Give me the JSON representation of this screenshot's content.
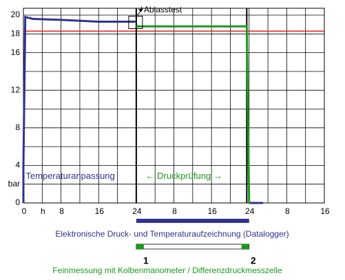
{
  "chart_data": {
    "type": "line",
    "xlim": [
      0,
      64
    ],
    "ylim": [
      0,
      20
    ],
    "xticks": [
      0,
      {
        "value": 4,
        "label": "h"
      },
      8,
      16,
      24,
      {
        "value": 32,
        "label": "8"
      },
      {
        "value": 40,
        "label": "16"
      },
      {
        "value": 48,
        "label": "24"
      },
      {
        "value": 56,
        "label": "8"
      },
      {
        "value": 64,
        "label": "16"
      }
    ],
    "yticks": [
      0,
      {
        "value": 2,
        "label": "bar"
      },
      4,
      8,
      12,
      16,
      18,
      20
    ],
    "xgrid": [
      0,
      4,
      8,
      12,
      16,
      20,
      24,
      28,
      32,
      36,
      40,
      44,
      48,
      52,
      56,
      60,
      64
    ],
    "ygrid": [
      0,
      2,
      4,
      6,
      8,
      10,
      12,
      14,
      16,
      18,
      20
    ],
    "series": [
      {
        "color": "#2e3192",
        "x": [
          0,
          0,
          0.4,
          2,
          8,
          16,
          24
        ],
        "values": [
          0,
          4,
          19.8,
          19.6,
          19.5,
          19.3,
          19.3
        ]
      },
      {
        "color": "#1a9a1a",
        "x": [
          24,
          47.5,
          48,
          48.2
        ],
        "values": [
          18.8,
          18.8,
          0,
          0
        ]
      },
      {
        "color": "#2e3192",
        "x": [
          48.2,
          51
        ],
        "values": [
          0,
          0
        ]
      }
    ],
    "hlines": [
      {
        "value": 18.3,
        "color": "#e02020"
      }
    ],
    "vlines": [
      24,
      47.5
    ],
    "annotations": [
      {
        "text": "Temperaturanpassung",
        "x": 0.5,
        "y": 2.8,
        "color": "#2e3192"
      },
      {
        "text": "←  Druckprüfung  →",
        "x": 26,
        "y": 2.8,
        "color": "#1a9a1a"
      }
    ],
    "callout": {
      "text": "/ Ablasstest",
      "x": 24,
      "y": 19.3
    },
    "phase_bars": [
      {
        "label": "Elektronische Druck- und Temperaturaufzeichnung (Datalogger)",
        "x": [
          24,
          48
        ],
        "color": "#2e3192"
      },
      {
        "label": "Feinmessung mit Kolbenmanometer / Differenzdruckmesszelle",
        "x": [
          24,
          48
        ],
        "color": "#1a9a1a",
        "markers": [
          "1",
          "2"
        ]
      }
    ]
  }
}
